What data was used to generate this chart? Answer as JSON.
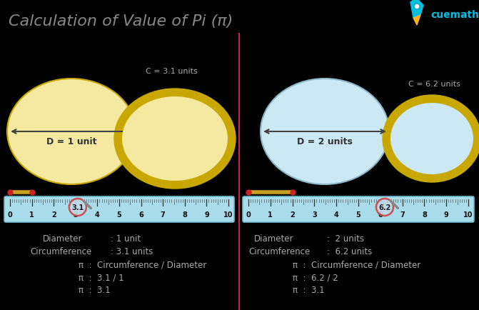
{
  "title": "Calculation of Value of Pi (π)",
  "bg_color": "#000000",
  "left_circle_fill": "#f5e8a0",
  "left_circle_edge": "#c8a800",
  "circ_border_fill": "#f5e8a0",
  "circ_border_color_left": "#c8a800",
  "circ_border_color_right": "#c8a800",
  "right_circle_fill": "#cce8f4",
  "right_circle_edge": "#90b8cc",
  "ruler_color": "#a8dcea",
  "ruler_edge_color": "#70b8cc",
  "text_color": "#aaaaaa",
  "title_color": "#888888",
  "divider_color": "#cc2255",
  "left_label_text": "D = 1 unit",
  "right_label_text": "D = 2 units",
  "left_c_label": "C = 3.1 units",
  "right_c_label": "C = 6.2 units",
  "left_info_col1": [
    "Diameter",
    "Circumference",
    "",
    "",
    ""
  ],
  "left_info_col2": [
    ": 1 unit",
    ": 3.1 units",
    "",
    "",
    ""
  ],
  "left_info_pi": [
    "π  :  Circumference / Diameter",
    "π  :  3.1 / 1",
    "π  :  3.1"
  ],
  "right_info_col1": [
    "Diameter",
    "Circumference",
    "",
    "",
    ""
  ],
  "right_info_col2": [
    ":  2 units",
    ":  6.2 units",
    "",
    "",
    ""
  ],
  "right_info_pi": [
    "π  :  Circumference / Diameter",
    "π  :  6.2 / 2",
    "π  :  3.1"
  ],
  "left_magnify_val": "3.1",
  "right_magnify_val": "6.2",
  "arrow_color": "#444444",
  "meas_bar_color": "#c8a020",
  "meas_dot_color": "#cc2222",
  "mag_fill": "#c0d8e8",
  "mag_edge": "#cc4444",
  "mag_handle": "#888888"
}
